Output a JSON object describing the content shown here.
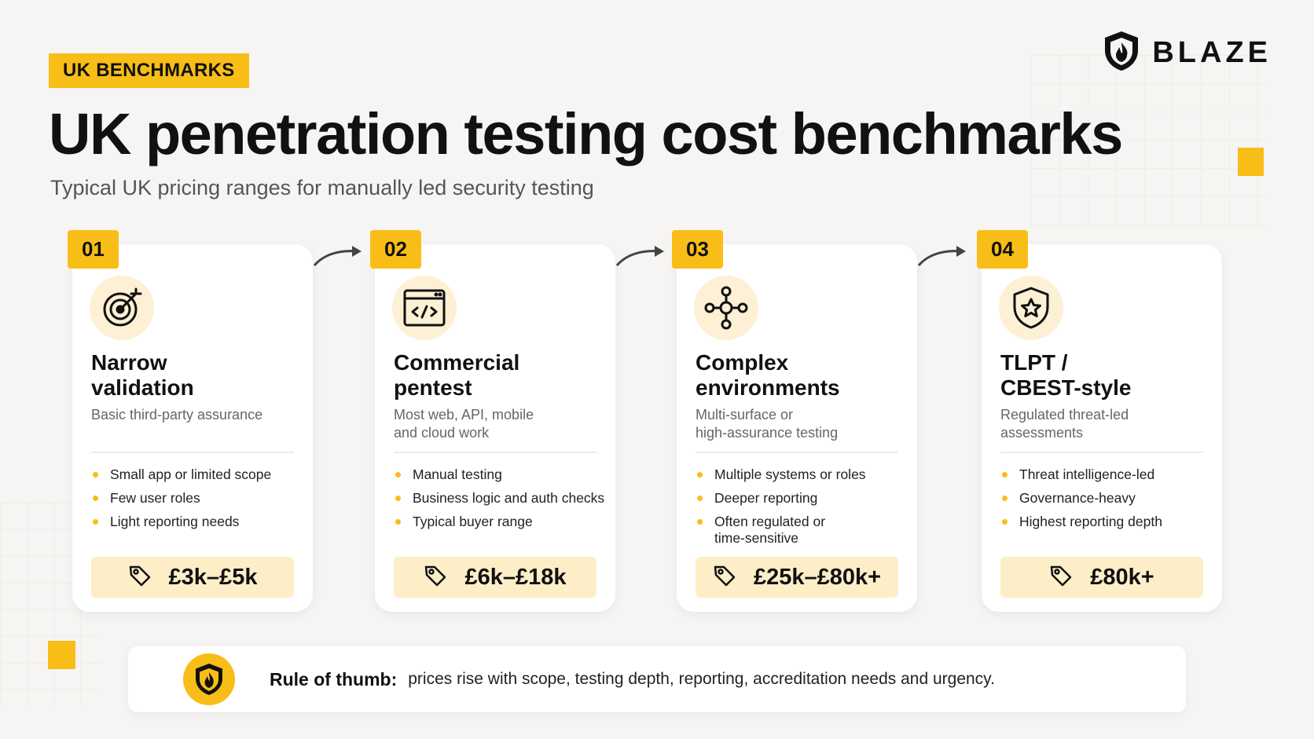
{
  "header": {
    "tag": "UK BENCHMARKS",
    "brand": "BLAZE",
    "title": "UK penetration testing cost benchmarks",
    "subtitle": "Typical UK pricing ranges for manually led security testing"
  },
  "cards": [
    {
      "number": "01",
      "icon": "target-icon",
      "title_line1": "Narrow",
      "title_line2": "validation",
      "desc_line1": "Basic third-party assurance",
      "desc_line2": "",
      "bullets": [
        "Small app or limited scope",
        "Few user roles",
        "Light reporting needs"
      ],
      "price": "£3k–£5k"
    },
    {
      "number": "02",
      "icon": "code-window-icon",
      "title_line1": "Commercial",
      "title_line2": "pentest",
      "desc_line1": "Most web, API, mobile",
      "desc_line2": "and cloud work",
      "bullets": [
        "Manual testing",
        "Business logic and auth checks",
        "Typical buyer range"
      ],
      "price": "£6k–£18k"
    },
    {
      "number": "03",
      "icon": "network-nodes-icon",
      "title_line1": "Complex",
      "title_line2": "environments",
      "desc_line1": "Multi-surface or",
      "desc_line2": "high-assurance testing",
      "bullets": [
        "Multiple systems or roles",
        "Deeper reporting",
        "Often regulated or time-sensitive"
      ],
      "price": "£25k–£80k+"
    },
    {
      "number": "04",
      "icon": "shield-star-icon",
      "title_line1": "TLPT /",
      "title_line2": "CBEST-style",
      "desc_line1": "Regulated threat-led",
      "desc_line2": "assessments",
      "bullets": [
        "Threat intelligence-led",
        "Governance-heavy",
        "Highest reporting depth"
      ],
      "price": "£80k+"
    }
  ],
  "rule": {
    "label": "Rule of thumb:",
    "text": "prices rise with scope, testing depth, reporting, accreditation needs and urgency."
  },
  "colors": {
    "accent": "#f8be17",
    "price_bg": "#fdeec8",
    "icon_bg": "#fdf0d4",
    "background": "#f6f5f3"
  }
}
